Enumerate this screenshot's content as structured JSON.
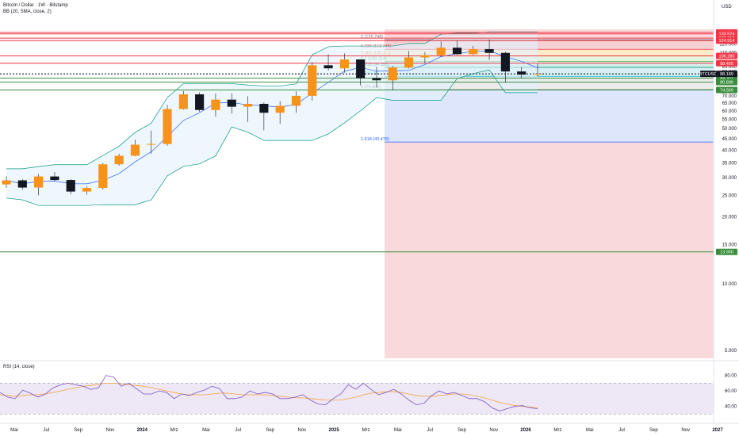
{
  "header": {
    "title": "Bitcoin / Dollar · 1W · Bitstamp",
    "indicator": "BB (20, SMA, close, 2)",
    "currency": "USD",
    "rsi_label": "RSI (14, close)"
  },
  "chart_data": {
    "type": "candlestick",
    "symbol": "BTCUSD",
    "current_price": "88.189",
    "price_axis": {
      "scale": "log",
      "range": [
        4.0,
        140.0
      ],
      "ticks": [
        "130.000",
        "120.000",
        "110.000",
        "100.000",
        "95.000",
        "90.000",
        "85.000",
        "75.000",
        "70.000",
        "65.000",
        "60.000",
        "55.000",
        "50.000",
        "45.000",
        "40.000",
        "35.000",
        "30.000",
        "25.000",
        "20.000",
        "15.000",
        "10.000",
        "5.000"
      ]
    },
    "time_axis": {
      "labels": [
        "Mai",
        "Jul",
        "Sep",
        "Nov",
        "2024",
        "Mrz",
        "Mai",
        "Jul",
        "Sep",
        "Nov",
        "2025",
        "Mrz",
        "Mai",
        "Jul",
        "Sep",
        "Nov",
        "2026",
        "Mrz",
        "Mai",
        "Jul",
        "Sep",
        "Nov",
        "2027"
      ]
    },
    "price_levels": [
      {
        "label": "135.658",
        "value": 135.658,
        "color": "#f23645"
      },
      {
        "label": "133.524",
        "value": 133.524,
        "color": "#f23645"
      },
      {
        "label": "127.713",
        "value": 127.713,
        "color": "#f23645"
      },
      {
        "label": "124.514",
        "value": 124.514,
        "color": "#f23645"
      },
      {
        "label": "106.280",
        "value": 106.28,
        "color": "#f23645"
      },
      {
        "label": "98.465",
        "value": 98.465,
        "color": "#f23645"
      },
      {
        "label": "84.321",
        "value": 84.321,
        "color": "#388e3c"
      },
      {
        "label": "80.896",
        "value": 80.896,
        "color": "#388e3c"
      },
      {
        "label": "74.569",
        "value": 74.569,
        "color": "#388e3c"
      },
      {
        "label": "13.900",
        "value": 13.9,
        "color": "#388e3c"
      }
    ],
    "fib_levels": [
      {
        "ratio": "0",
        "label": "0 (125.748)",
        "value": 125.748,
        "color": "#787b86"
      },
      {
        "ratio": "0.236",
        "label": "0.236 (113.748)",
        "value": 113.748,
        "color": "#f23645"
      },
      {
        "ratio": "0.382",
        "label": "0.382 (106.3...)",
        "value": 106.3,
        "color": "#f57c00"
      },
      {
        "ratio": "0.5",
        "label": "0.5 (100.324)",
        "value": 100.324,
        "color": "#4caf50"
      },
      {
        "ratio": "0.618",
        "label": "0.618 (94.355)",
        "value": 94.355,
        "color": "#089981"
      },
      {
        "ratio": "0.786",
        "label": "0.786 (86...)",
        "value": 86.0,
        "color": "#00bcd4"
      },
      {
        "ratio": "1",
        "label": "1 (74.901)",
        "value": 74.901,
        "color": "#787b86"
      },
      {
        "ratio": "1.618",
        "label": "1.618 (43.478)",
        "value": 43.478,
        "color": "#2962ff"
      }
    ],
    "series": [
      {
        "name": "BTCUSD",
        "points": [
          {
            "t": "2023-04",
            "open": 28.0,
            "high": 30.5,
            "low": 27.0,
            "close": 29.2
          },
          {
            "t": "2023-05",
            "open": 29.2,
            "high": 29.6,
            "low": 26.5,
            "close": 27.1
          },
          {
            "t": "2023-06",
            "open": 27.1,
            "high": 31.2,
            "low": 25.0,
            "close": 30.4
          },
          {
            "t": "2023-07",
            "open": 30.4,
            "high": 31.8,
            "low": 28.9,
            "close": 29.3
          },
          {
            "t": "2023-08",
            "open": 29.3,
            "high": 29.6,
            "low": 25.3,
            "close": 26.0
          },
          {
            "t": "2023-09",
            "open": 26.0,
            "high": 27.5,
            "low": 25.2,
            "close": 27.0
          },
          {
            "t": "2023-10",
            "open": 27.0,
            "high": 35.0,
            "low": 26.5,
            "close": 34.5
          },
          {
            "t": "2023-11",
            "open": 34.5,
            "high": 38.5,
            "low": 34.0,
            "close": 37.7
          },
          {
            "t": "2023-12",
            "open": 37.7,
            "high": 44.5,
            "low": 37.5,
            "close": 42.3
          },
          {
            "t": "2024-01",
            "open": 42.3,
            "high": 48.9,
            "low": 38.5,
            "close": 42.6
          },
          {
            "t": "2024-02",
            "open": 42.6,
            "high": 63.9,
            "low": 41.8,
            "close": 61.2
          },
          {
            "t": "2024-03",
            "open": 61.2,
            "high": 73.8,
            "low": 60.8,
            "close": 71.3
          },
          {
            "t": "2024-04",
            "open": 71.3,
            "high": 72.7,
            "low": 59.5,
            "close": 60.6
          },
          {
            "t": "2024-05",
            "open": 60.6,
            "high": 71.9,
            "low": 56.5,
            "close": 67.5
          },
          {
            "t": "2024-06",
            "open": 67.5,
            "high": 72.0,
            "low": 58.4,
            "close": 62.7
          },
          {
            "t": "2024-07",
            "open": 62.7,
            "high": 70.0,
            "low": 53.5,
            "close": 64.6
          },
          {
            "t": "2024-08",
            "open": 64.6,
            "high": 65.6,
            "low": 49.1,
            "close": 58.9
          },
          {
            "t": "2024-09",
            "open": 58.9,
            "high": 66.5,
            "low": 52.5,
            "close": 63.3
          },
          {
            "t": "2024-10",
            "open": 63.3,
            "high": 73.6,
            "low": 58.9,
            "close": 70.2
          },
          {
            "t": "2024-11",
            "open": 70.2,
            "high": 99.6,
            "low": 66.8,
            "close": 96.4
          },
          {
            "t": "2024-12",
            "open": 96.4,
            "high": 108.2,
            "low": 91.3,
            "close": 93.4
          },
          {
            "t": "2025-01",
            "open": 93.4,
            "high": 109.0,
            "low": 89.2,
            "close": 102.4
          },
          {
            "t": "2025-02",
            "open": 102.4,
            "high": 102.5,
            "low": 78.2,
            "close": 84.4
          },
          {
            "t": "2025-03",
            "open": 84.4,
            "high": 95.0,
            "low": 76.6,
            "close": 82.5
          },
          {
            "t": "2025-04",
            "open": 82.5,
            "high": 95.7,
            "low": 74.5,
            "close": 94.2
          },
          {
            "t": "2025-05",
            "open": 94.2,
            "high": 111.9,
            "low": 93.3,
            "close": 104.6
          },
          {
            "t": "2025-06",
            "open": 104.6,
            "high": 110.5,
            "low": 98.3,
            "close": 107.1
          },
          {
            "t": "2025-07",
            "open": 107.1,
            "high": 123.2,
            "low": 105.2,
            "close": 115.7
          },
          {
            "t": "2025-08",
            "open": 115.7,
            "high": 124.5,
            "low": 107.3,
            "close": 108.2
          },
          {
            "t": "2025-09",
            "open": 108.2,
            "high": 117.9,
            "low": 107.2,
            "close": 114.0
          },
          {
            "t": "2025-10",
            "open": 114.0,
            "high": 126.2,
            "low": 102.0,
            "close": 109.6
          },
          {
            "t": "2025-11",
            "open": 109.6,
            "high": 111.0,
            "low": 80.6,
            "close": 90.4
          },
          {
            "t": "2025-12",
            "open": 90.4,
            "high": 94.6,
            "low": 84.4,
            "close": 87.5
          },
          {
            "t": "2026-01",
            "open": 87.5,
            "high": 97.9,
            "low": 86.0,
            "close": 88.2
          }
        ]
      }
    ],
    "rsi": {
      "axis_ticks": [
        "80.00",
        "60.00",
        "40.00"
      ],
      "upper": 70,
      "lower": 30,
      "values": [
        58,
        52,
        50,
        61,
        57,
        52,
        56,
        64,
        68,
        70,
        68,
        66,
        62,
        64,
        80,
        78,
        66,
        70,
        63,
        56,
        56,
        60,
        58,
        50,
        56,
        54,
        58,
        61,
        66,
        63,
        50,
        50,
        52,
        60,
        56,
        58,
        56,
        50,
        50,
        52,
        55,
        48,
        43,
        42,
        50,
        56,
        68,
        62,
        70,
        62,
        55,
        58,
        62,
        56,
        48,
        42,
        44,
        54,
        60,
        56,
        58,
        54,
        50,
        50,
        46,
        38,
        34,
        37,
        40,
        41,
        38,
        37
      ],
      "signal": [
        55,
        54,
        53,
        54,
        55,
        55,
        56,
        58,
        60,
        62,
        64,
        66,
        67,
        69,
        70,
        70,
        69,
        68,
        67,
        66,
        64,
        62,
        60,
        58,
        56,
        55,
        55,
        55,
        56,
        57,
        57,
        56,
        55,
        55,
        55,
        55,
        54,
        53,
        52,
        51,
        51,
        50,
        49,
        48,
        48,
        48,
        50,
        52,
        55,
        57,
        58,
        59,
        59,
        58,
        56,
        54,
        53,
        53,
        54,
        55,
        56,
        56,
        55,
        53,
        51,
        48,
        45,
        43,
        41,
        40,
        39,
        38
      ]
    }
  }
}
